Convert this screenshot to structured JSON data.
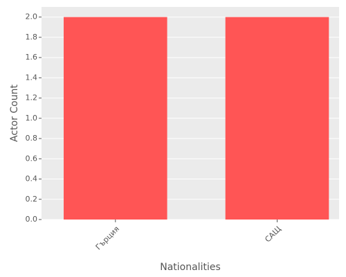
{
  "chart_data": {
    "type": "bar",
    "x_label": "Nationalities",
    "y_label": "Actor Count",
    "categories": [
      "Гърция",
      "САЩ"
    ],
    "values": [
      2,
      2
    ],
    "color": "#ff5555",
    "ylim": [
      0,
      2.1
    ],
    "yticks": [
      {
        "value": 0,
        "label": "0.0"
      },
      {
        "value": 0.2,
        "label": "0.2"
      },
      {
        "value": 0.4,
        "label": "0.4"
      },
      {
        "value": 0.6,
        "label": "0.6"
      },
      {
        "value": 0.8,
        "label": "0.8"
      },
      {
        "value": 1,
        "label": "1.0"
      },
      {
        "value": 1.2,
        "label": "1.2"
      },
      {
        "value": 1.4,
        "label": "1.4"
      },
      {
        "value": 1.6,
        "label": "1.6"
      },
      {
        "value": 1.8,
        "label": "1.8"
      },
      {
        "value": 2,
        "label": "2.0"
      }
    ],
    "grid": true
  }
}
